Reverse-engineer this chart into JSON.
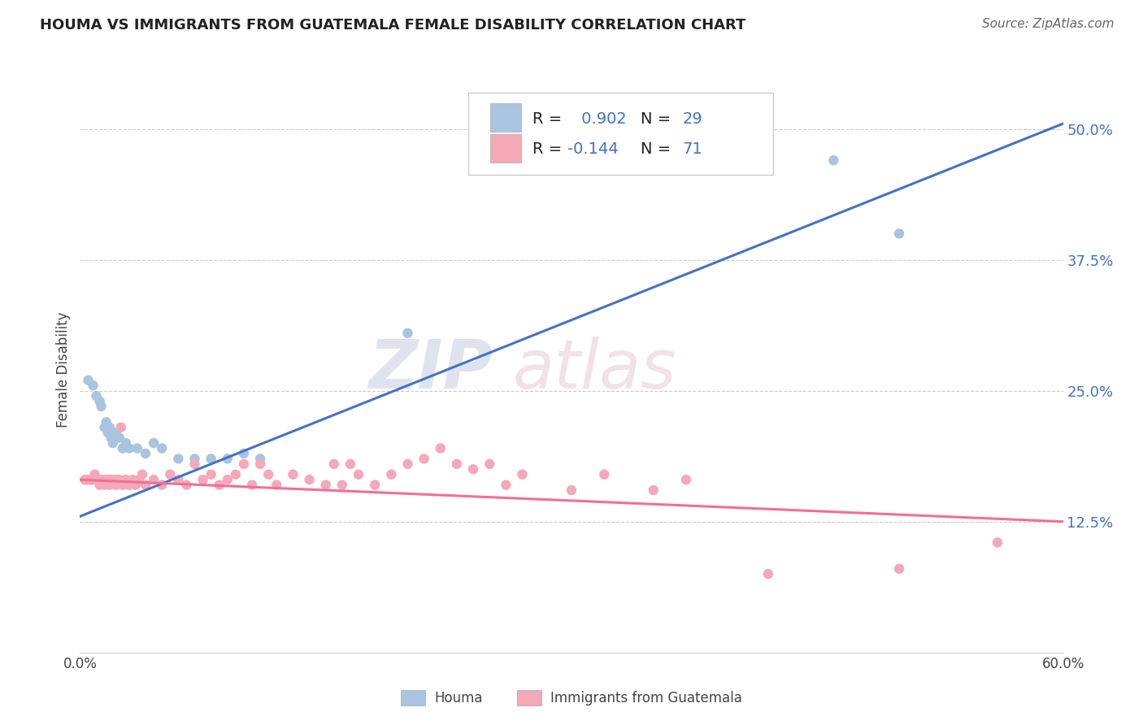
{
  "title": "HOUMA VS IMMIGRANTS FROM GUATEMALA FEMALE DISABILITY CORRELATION CHART",
  "source": "Source: ZipAtlas.com",
  "ylabel": "Female Disability",
  "xlim": [
    0.0,
    0.6
  ],
  "ylim": [
    0.0,
    0.54
  ],
  "yticks": [
    0.125,
    0.25,
    0.375,
    0.5
  ],
  "ytick_labels": [
    "12.5%",
    "25.0%",
    "37.5%",
    "50.0%"
  ],
  "xticks": [
    0.0,
    0.6
  ],
  "xtick_labels": [
    "0.0%",
    "60.0%"
  ],
  "houma_color": "#a8c4e0",
  "guatemala_color": "#f4a8b8",
  "houma_line_color": "#4472c4",
  "guatemala_line_color": "#f07090",
  "houma_R": 0.902,
  "houma_N": 29,
  "guatemala_R": -0.144,
  "guatemala_N": 71,
  "watermark_zip": "ZIP",
  "watermark_atlas": "atlas",
  "houma_scatter": [
    [
      0.005,
      0.26
    ],
    [
      0.008,
      0.255
    ],
    [
      0.01,
      0.245
    ],
    [
      0.012,
      0.24
    ],
    [
      0.013,
      0.235
    ],
    [
      0.015,
      0.215
    ],
    [
      0.016,
      0.22
    ],
    [
      0.017,
      0.21
    ],
    [
      0.018,
      0.215
    ],
    [
      0.019,
      0.205
    ],
    [
      0.02,
      0.2
    ],
    [
      0.022,
      0.21
    ],
    [
      0.024,
      0.205
    ],
    [
      0.026,
      0.195
    ],
    [
      0.028,
      0.2
    ],
    [
      0.03,
      0.195
    ],
    [
      0.035,
      0.195
    ],
    [
      0.04,
      0.19
    ],
    [
      0.045,
      0.2
    ],
    [
      0.05,
      0.195
    ],
    [
      0.06,
      0.185
    ],
    [
      0.07,
      0.185
    ],
    [
      0.08,
      0.185
    ],
    [
      0.09,
      0.185
    ],
    [
      0.1,
      0.19
    ],
    [
      0.2,
      0.305
    ],
    [
      0.11,
      0.185
    ],
    [
      0.46,
      0.47
    ],
    [
      0.5,
      0.4
    ]
  ],
  "guatemala_scatter": [
    [
      0.003,
      0.165
    ],
    [
      0.004,
      0.165
    ],
    [
      0.005,
      0.165
    ],
    [
      0.006,
      0.165
    ],
    [
      0.007,
      0.165
    ],
    [
      0.008,
      0.165
    ],
    [
      0.009,
      0.17
    ],
    [
      0.01,
      0.165
    ],
    [
      0.011,
      0.165
    ],
    [
      0.012,
      0.16
    ],
    [
      0.013,
      0.165
    ],
    [
      0.014,
      0.165
    ],
    [
      0.015,
      0.16
    ],
    [
      0.016,
      0.165
    ],
    [
      0.017,
      0.165
    ],
    [
      0.018,
      0.16
    ],
    [
      0.019,
      0.165
    ],
    [
      0.02,
      0.165
    ],
    [
      0.021,
      0.165
    ],
    [
      0.022,
      0.16
    ],
    [
      0.023,
      0.165
    ],
    [
      0.024,
      0.165
    ],
    [
      0.025,
      0.215
    ],
    [
      0.026,
      0.16
    ],
    [
      0.028,
      0.165
    ],
    [
      0.03,
      0.16
    ],
    [
      0.032,
      0.165
    ],
    [
      0.034,
      0.16
    ],
    [
      0.036,
      0.165
    ],
    [
      0.038,
      0.17
    ],
    [
      0.04,
      0.16
    ],
    [
      0.045,
      0.165
    ],
    [
      0.05,
      0.16
    ],
    [
      0.055,
      0.17
    ],
    [
      0.06,
      0.165
    ],
    [
      0.065,
      0.16
    ],
    [
      0.07,
      0.18
    ],
    [
      0.075,
      0.165
    ],
    [
      0.08,
      0.17
    ],
    [
      0.085,
      0.16
    ],
    [
      0.09,
      0.165
    ],
    [
      0.095,
      0.17
    ],
    [
      0.1,
      0.18
    ],
    [
      0.105,
      0.16
    ],
    [
      0.11,
      0.18
    ],
    [
      0.115,
      0.17
    ],
    [
      0.12,
      0.16
    ],
    [
      0.13,
      0.17
    ],
    [
      0.14,
      0.165
    ],
    [
      0.15,
      0.16
    ],
    [
      0.155,
      0.18
    ],
    [
      0.16,
      0.16
    ],
    [
      0.165,
      0.18
    ],
    [
      0.17,
      0.17
    ],
    [
      0.18,
      0.16
    ],
    [
      0.19,
      0.17
    ],
    [
      0.2,
      0.18
    ],
    [
      0.21,
      0.185
    ],
    [
      0.22,
      0.195
    ],
    [
      0.23,
      0.18
    ],
    [
      0.24,
      0.175
    ],
    [
      0.25,
      0.18
    ],
    [
      0.26,
      0.16
    ],
    [
      0.27,
      0.17
    ],
    [
      0.3,
      0.155
    ],
    [
      0.32,
      0.17
    ],
    [
      0.35,
      0.155
    ],
    [
      0.37,
      0.165
    ],
    [
      0.42,
      0.075
    ],
    [
      0.5,
      0.08
    ],
    [
      0.56,
      0.105
    ]
  ],
  "houma_line_x": [
    0.0,
    0.6
  ],
  "houma_line_y": [
    0.13,
    0.505
  ],
  "guatemala_line_x": [
    0.0,
    0.6
  ],
  "guatemala_line_y": [
    0.165,
    0.125
  ],
  "grid_color": "#cccccc",
  "background_color": "#ffffff"
}
